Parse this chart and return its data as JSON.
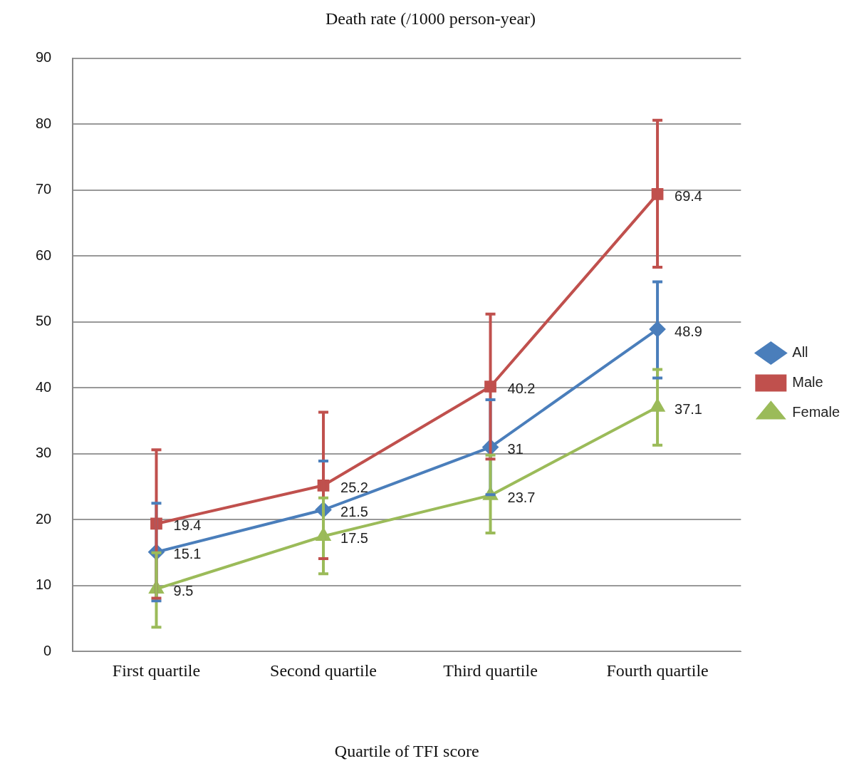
{
  "chart_data": {
    "type": "line",
    "title": "Death rate (/1000 person-year)",
    "xlabel": "Quartile of TFI score",
    "categories": [
      "First quartile",
      "Second quartile",
      "Third quartile",
      "Fourth quartile"
    ],
    "series": [
      {
        "name": "All",
        "color": "#4a7ebb",
        "marker": "diamond",
        "values": [
          15.1,
          21.5,
          31,
          48.9
        ],
        "errors": [
          [
            7.7,
            22.5
          ],
          [
            14.1,
            28.9
          ],
          [
            23.8,
            38.2
          ],
          [
            41.5,
            56.1
          ]
        ]
      },
      {
        "name": "Male",
        "color": "#c0504d",
        "marker": "square",
        "values": [
          19.4,
          25.2,
          40.2,
          69.4
        ],
        "errors": [
          [
            8.1,
            30.6
          ],
          [
            14.1,
            36.3
          ],
          [
            29.2,
            51.2
          ],
          [
            58.3,
            80.6
          ]
        ]
      },
      {
        "name": "Female",
        "color": "#9bbb59",
        "marker": "triangle",
        "values": [
          9.5,
          17.5,
          23.7,
          37.1
        ],
        "errors": [
          [
            3.7,
            15
          ],
          [
            11.8,
            23.3
          ],
          [
            18,
            29.8
          ],
          [
            31.3,
            42.8
          ]
        ]
      }
    ],
    "ylim": [
      0,
      90
    ],
    "yticks": [
      0,
      10,
      20,
      30,
      40,
      50,
      60,
      70,
      80,
      90
    ],
    "grid": "y",
    "legend": "right",
    "data_labels": true,
    "line_style": "solid"
  }
}
